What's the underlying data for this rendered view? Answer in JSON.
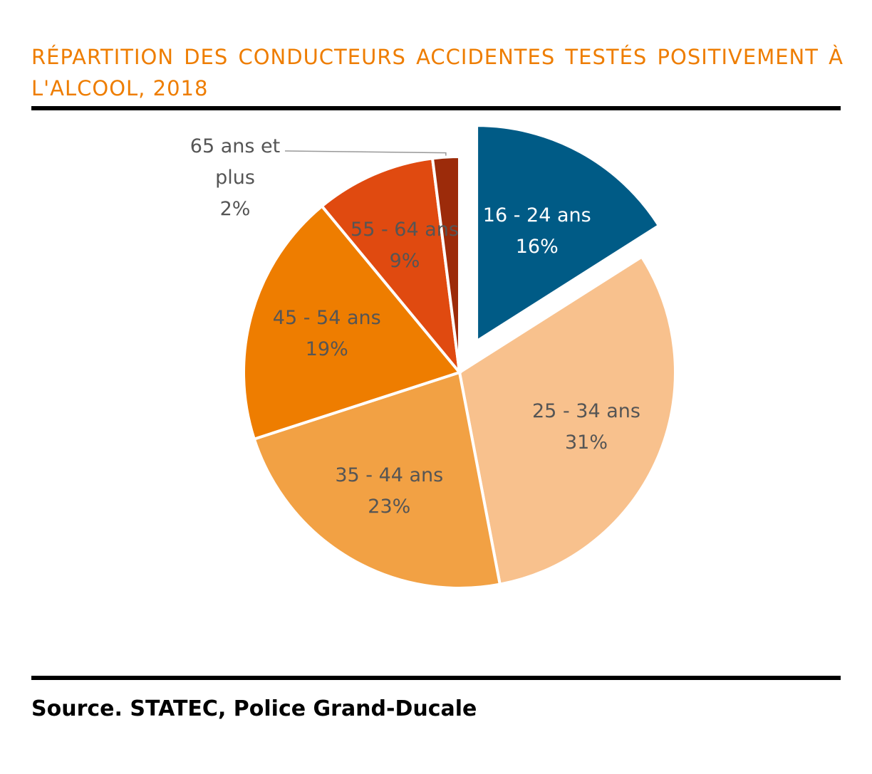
{
  "chart_data": {
    "type": "pie",
    "title": "RÉPARTITION DES CONDUCTEURS ACCIDENTES TESTÉS POSITIVEMENT À L'ALCOOL, 2018",
    "categories": [
      "16 - 24 ans",
      "25 - 34 ans",
      "35 - 44 ans",
      "45 - 54 ans",
      "55 - 64 ans",
      "65 ans et plus"
    ],
    "values": [
      16,
      31,
      23,
      19,
      9,
      2
    ],
    "value_labels": [
      "16%",
      "31%",
      "23%",
      "19%",
      "9%",
      "2%"
    ],
    "colors": [
      "#005b86",
      "#f8c18d",
      "#f2a144",
      "#ee7d00",
      "#e04a10",
      "#9c2b0a"
    ],
    "explode": [
      true,
      false,
      false,
      false,
      false,
      false
    ],
    "source": "Source. STATEC, Police Grand-Ducale"
  }
}
